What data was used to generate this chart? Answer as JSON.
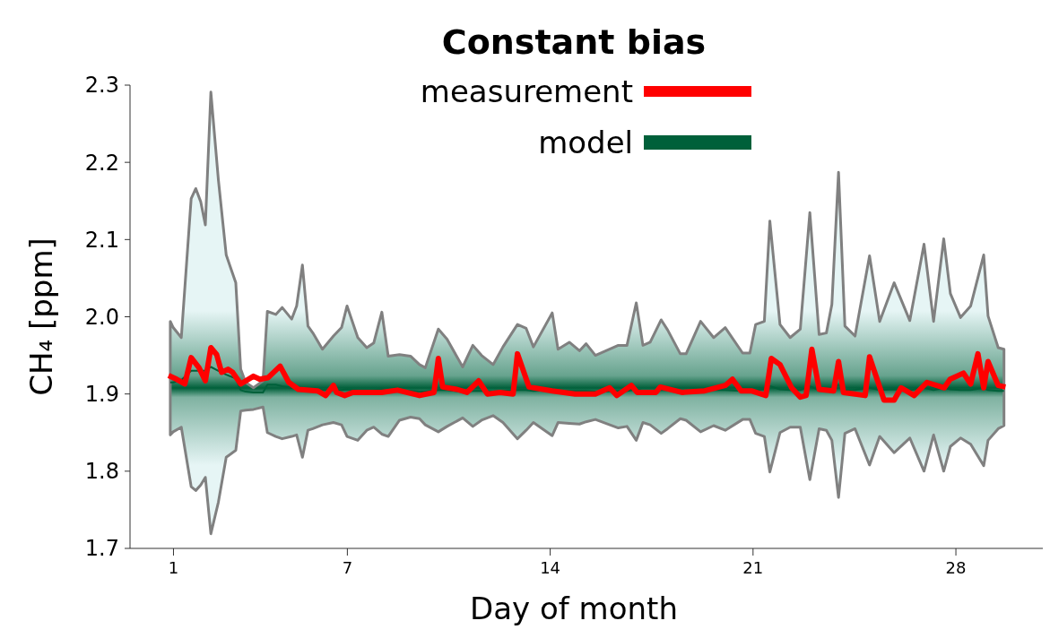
{
  "chart_data": {
    "type": "line",
    "title": "Constant bias",
    "xlabel": "Day of month",
    "ylabel": "CH₄ [ppm]",
    "xlim": [
      -0.5,
      31
    ],
    "xticks": [
      1,
      7,
      14,
      21,
      28
    ],
    "ylim": [
      1.7,
      2.3
    ],
    "yticks": [
      1.7,
      1.8,
      1.9,
      {
        "value": 2,
        "label": "2.0"
      },
      2.1,
      2.2,
      2.3
    ],
    "grid": false,
    "legend": "top",
    "marker": "none",
    "line_style": "solid",
    "series": [
      {
        "name": "measurement",
        "color": "#ff0000",
        "x": [
          0.83,
          1.11,
          1.39,
          1.61,
          1.88,
          2.1,
          2.29,
          2.49,
          2.66,
          2.88,
          3.04,
          3.32,
          3.76,
          3.98,
          4.26,
          4.68,
          4.98,
          5.31,
          5.97,
          6.25,
          6.52,
          6.63,
          6.91,
          7.19,
          8.18,
          8.73,
          9.49,
          9.99,
          10.14,
          10.29,
          10.78,
          11.13,
          11.53,
          11.83,
          12.27,
          12.72,
          12.87,
          13.27,
          14.07,
          14.86,
          15.56,
          16.05,
          16.3,
          16.8,
          17.0,
          17.65,
          17.8,
          18.54,
          19.33,
          20.04,
          20.29,
          20.59,
          20.94,
          21.44,
          21.63,
          21.93,
          22.33,
          22.63,
          22.83,
          23.03,
          23.28,
          23.78,
          23.95,
          24.12,
          24.87,
          25.02,
          25.52,
          25.87,
          26.11,
          26.56,
          27.0,
          27.6,
          27.8,
          28.26,
          28.51,
          28.76,
          28.96,
          29.11,
          29.46,
          29.71
        ],
        "values": [
          1.924,
          1.919,
          1.913,
          1.947,
          1.934,
          1.917,
          1.96,
          1.951,
          1.928,
          1.932,
          1.928,
          1.913,
          1.923,
          1.919,
          1.921,
          1.936,
          1.915,
          1.906,
          1.904,
          1.898,
          1.911,
          1.902,
          1.898,
          1.902,
          1.902,
          1.905,
          1.898,
          1.902,
          1.946,
          1.909,
          1.906,
          1.902,
          1.917,
          1.9,
          1.902,
          1.9,
          1.952,
          1.909,
          1.904,
          1.9,
          1.9,
          1.908,
          1.898,
          1.911,
          1.902,
          1.902,
          1.909,
          1.902,
          1.904,
          1.911,
          1.919,
          1.904,
          1.904,
          1.898,
          1.946,
          1.938,
          1.908,
          1.896,
          1.898,
          1.958,
          1.906,
          1.904,
          1.942,
          1.902,
          1.898,
          1.948,
          1.892,
          1.892,
          1.908,
          1.898,
          1.915,
          1.908,
          1.919,
          1.927,
          1.913,
          1.952,
          1.908,
          1.942,
          1.911,
          1.909
        ]
      },
      {
        "name": "model",
        "color": "#00603a",
        "x": [
          0.89,
          0.99,
          1.27,
          1.61,
          1.77,
          1.94,
          2.1,
          2.29,
          2.55,
          2.82,
          3.15,
          3.32,
          3.49,
          3.76,
          4.09,
          4.24,
          4.53,
          4.75,
          5.08,
          5.25,
          5.45,
          5.64,
          5.81,
          6.14,
          6.52,
          6.8,
          6.99,
          7.36,
          7.67,
          7.91,
          8.19,
          8.41,
          8.8,
          9.18,
          9.49,
          9.69,
          10.14,
          10.44,
          10.98,
          11.33,
          11.63,
          12.03,
          12.37,
          12.87,
          13.17,
          13.42,
          14.07,
          14.27,
          14.66,
          15.01,
          15.24,
          15.56,
          16.35,
          16.65,
          16.97,
          17.2,
          17.45,
          17.83,
          18.05,
          18.49,
          18.69,
          19.19,
          19.64,
          20.04,
          20.64,
          20.89,
          21.09,
          21.39,
          21.58,
          21.93,
          22.28,
          22.63,
          22.96,
          23.28,
          23.53,
          23.72,
          23.95,
          24.17,
          24.52,
          25.02,
          25.37,
          25.87,
          26.41,
          26.9,
          27.23,
          27.58,
          27.81,
          28.16,
          28.51,
          28.96,
          29.11,
          29.46,
          29.66
        ],
        "values": [
          1.915,
          1.915,
          1.918,
          1.93,
          1.93,
          1.93,
          1.93,
          1.935,
          1.93,
          1.925,
          1.92,
          1.905,
          1.903,
          1.902,
          1.902,
          1.912,
          1.912,
          1.91,
          1.908,
          1.908,
          1.908,
          1.906,
          1.906,
          1.905,
          1.905,
          1.905,
          1.906,
          1.905,
          1.905,
          1.905,
          1.906,
          1.904,
          1.904,
          1.904,
          1.903,
          1.903,
          1.905,
          1.905,
          1.903,
          1.904,
          1.904,
          1.903,
          1.904,
          1.905,
          1.905,
          1.904,
          1.905,
          1.904,
          1.904,
          1.904,
          1.904,
          1.903,
          1.904,
          1.904,
          1.906,
          1.904,
          1.904,
          1.905,
          1.905,
          1.903,
          1.903,
          1.905,
          1.905,
          1.905,
          1.904,
          1.904,
          1.905,
          1.906,
          1.91,
          1.906,
          1.905,
          1.905,
          1.91,
          1.905,
          1.905,
          1.906,
          1.912,
          1.905,
          1.905,
          1.908,
          1.905,
          1.906,
          1.905,
          1.908,
          1.905,
          1.908,
          1.906,
          1.905,
          1.905,
          1.908,
          1.905,
          1.904,
          1.904
        ],
        "upper": [
          1.994,
          1.986,
          1.973,
          2.153,
          2.166,
          2.149,
          2.119,
          2.291,
          2.177,
          2.08,
          2.044,
          1.932,
          1.915,
          1.908,
          1.917,
          2.007,
          2.003,
          2.012,
          1.997,
          2.014,
          2.067,
          1.988,
          1.979,
          1.958,
          1.975,
          1.986,
          2.014,
          1.973,
          1.96,
          1.966,
          2.006,
          1.949,
          1.951,
          1.949,
          1.938,
          1.934,
          1.984,
          1.971,
          1.935,
          1.963,
          1.95,
          1.938,
          1.961,
          1.99,
          1.985,
          1.961,
          2.005,
          1.958,
          1.967,
          1.956,
          1.965,
          1.95,
          1.963,
          1.963,
          2.018,
          1.963,
          1.967,
          1.996,
          1.983,
          1.952,
          1.952,
          1.994,
          1.973,
          1.986,
          1.953,
          1.953,
          1.99,
          1.994,
          2.124,
          1.99,
          1.973,
          1.984,
          2.135,
          1.977,
          1.979,
          2.016,
          2.187,
          1.988,
          1.975,
          2.079,
          1.994,
          2.044,
          1.995,
          2.094,
          1.994,
          2.101,
          2.03,
          1.999,
          2.014,
          2.08,
          2.001,
          1.96,
          1.958
        ],
        "lower": [
          1.847,
          1.851,
          1.857,
          1.78,
          1.775,
          1.782,
          1.792,
          1.719,
          1.76,
          1.818,
          1.827,
          1.878,
          1.879,
          1.88,
          1.883,
          1.85,
          1.845,
          1.842,
          1.845,
          1.847,
          1.818,
          1.853,
          1.855,
          1.86,
          1.863,
          1.86,
          1.845,
          1.84,
          1.853,
          1.857,
          1.848,
          1.845,
          1.866,
          1.87,
          1.868,
          1.86,
          1.851,
          1.858,
          1.869,
          1.858,
          1.866,
          1.872,
          1.863,
          1.842,
          1.853,
          1.863,
          1.846,
          1.863,
          1.862,
          1.861,
          1.864,
          1.867,
          1.856,
          1.858,
          1.84,
          1.863,
          1.86,
          1.849,
          1.855,
          1.868,
          1.866,
          1.851,
          1.859,
          1.853,
          1.867,
          1.867,
          1.849,
          1.845,
          1.799,
          1.85,
          1.857,
          1.857,
          1.789,
          1.855,
          1.853,
          1.84,
          1.766,
          1.849,
          1.855,
          1.808,
          1.845,
          1.824,
          1.843,
          1.8,
          1.847,
          1.8,
          1.832,
          1.843,
          1.835,
          1.807,
          1.84,
          1.855,
          1.859
        ]
      }
    ]
  }
}
